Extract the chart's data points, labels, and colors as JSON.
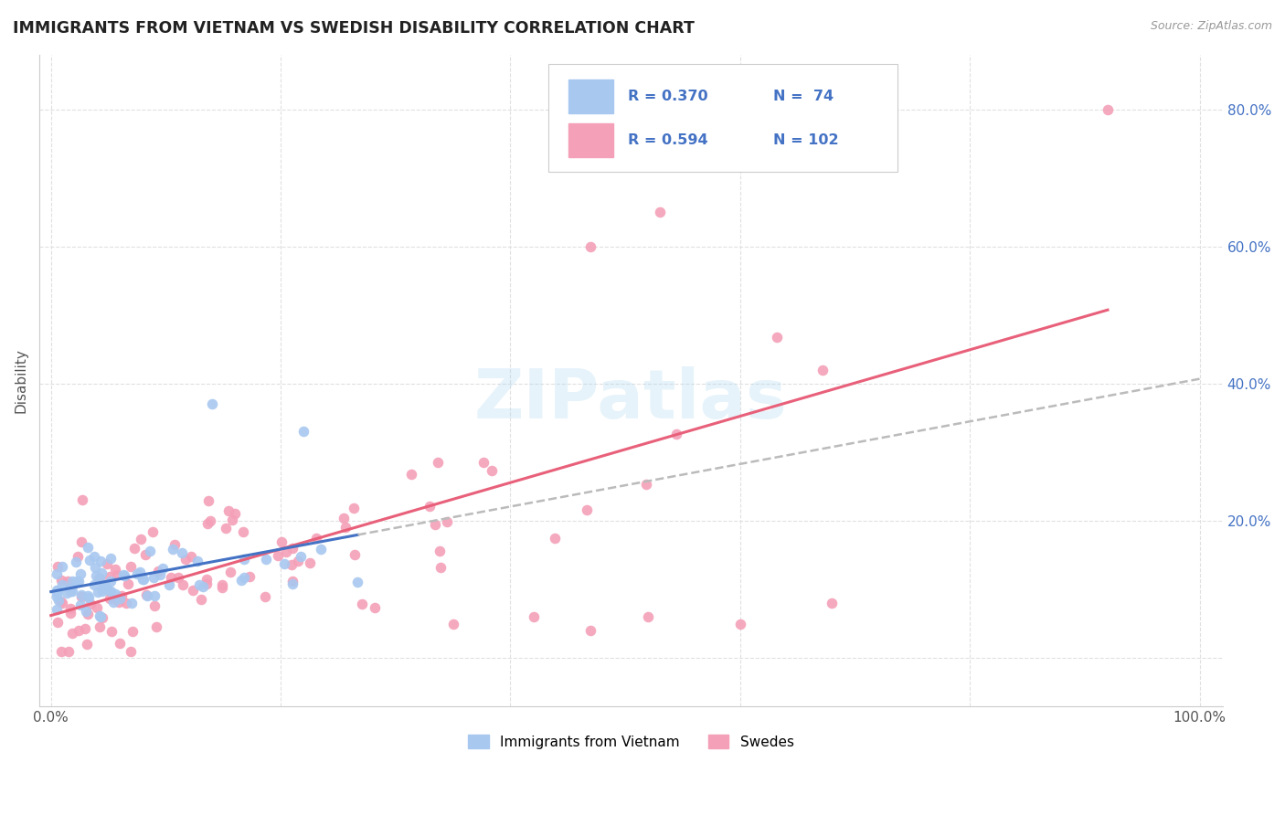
{
  "title": "IMMIGRANTS FROM VIETNAM VS SWEDISH DISABILITY CORRELATION CHART",
  "source": "Source: ZipAtlas.com",
  "ylabel": "Disability",
  "watermark": "ZIPatlas",
  "legend_blue_R": "0.370",
  "legend_blue_N": "74",
  "legend_pink_R": "0.594",
  "legend_pink_N": "102",
  "legend_label_blue": "Immigrants from Vietnam",
  "legend_label_pink": "Swedes",
  "color_blue": "#a8c8f0",
  "color_pink": "#f4a0b8",
  "line_blue": "#4472c4",
  "line_pink": "#e8607a",
  "line_gray": "#bbbbbb",
  "grid_color": "#e0e0e0",
  "background_color": "#ffffff",
  "title_color": "#222222",
  "title_fontsize": 12.5,
  "source_fontsize": 9,
  "axis_label_color": "#4472c4",
  "left_tick_color": "#555555"
}
